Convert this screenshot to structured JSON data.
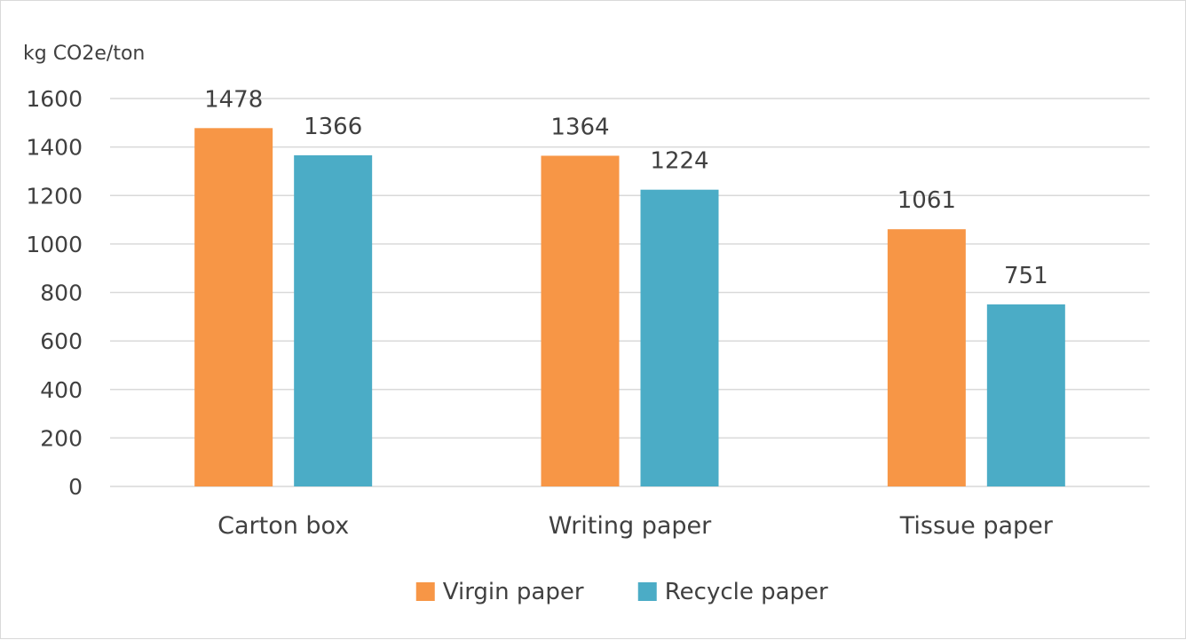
{
  "chart_data": {
    "type": "bar",
    "ylabel": "kg CO2e/ton",
    "categories": [
      "Carton box",
      "Writing paper",
      "Tissue paper"
    ],
    "series": [
      {
        "name": "Virgin paper",
        "color": "#f79646",
        "values": [
          1478,
          1364,
          1061
        ]
      },
      {
        "name": "Recycle paper",
        "color": "#4bacc6",
        "values": [
          1366,
          1224,
          751
        ]
      }
    ],
    "ylim": [
      0,
      1600
    ],
    "yticks": [
      0,
      200,
      400,
      600,
      800,
      1000,
      1200,
      1400,
      1600
    ],
    "grid": true,
    "legend": "bottom"
  }
}
